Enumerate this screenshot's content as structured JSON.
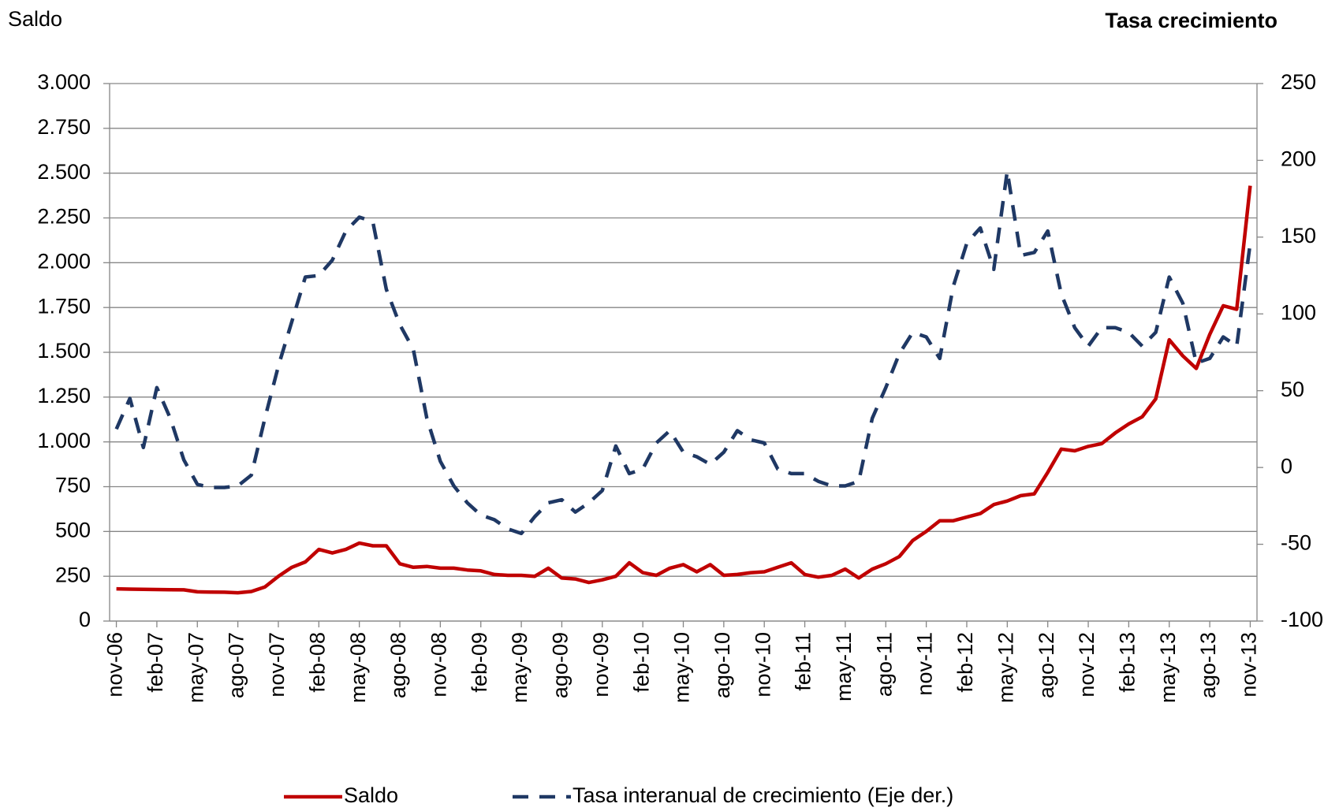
{
  "chart_data": {
    "type": "line",
    "y_label": "Saldo",
    "y2_label": "Tasa crecimiento",
    "categories": [
      "nov-06",
      null,
      null,
      "feb-07",
      null,
      null,
      "may-07",
      null,
      null,
      "ago-07",
      null,
      null,
      "nov-07",
      null,
      null,
      "feb-08",
      null,
      null,
      "may-08",
      null,
      null,
      "ago-08",
      null,
      null,
      "nov-08",
      null,
      null,
      "feb-09",
      null,
      null,
      "may-09",
      null,
      null,
      "ago-09",
      null,
      null,
      "nov-09",
      null,
      null,
      "feb-10",
      null,
      null,
      "may-10",
      null,
      null,
      "ago-10",
      null,
      null,
      "nov-10",
      null,
      null,
      "feb-11",
      null,
      null,
      "may-11",
      null,
      null,
      "ago-11",
      null,
      null,
      "nov-11",
      null,
      null,
      "feb-12",
      null,
      null,
      "may-12",
      null,
      null,
      "ago-12",
      null,
      null,
      "nov-12",
      null,
      null,
      "feb-13",
      null,
      null,
      "may-13",
      null,
      null,
      "ago-13",
      null,
      null,
      "nov-13"
    ],
    "series": [
      {
        "name": "Saldo",
        "color": "#c00000",
        "dash": false,
        "axis": "y",
        "values": [
          180,
          178,
          177,
          176,
          175,
          174,
          163,
          162,
          161,
          158,
          165,
          190,
          250,
          300,
          330,
          400,
          380,
          400,
          435,
          420,
          420,
          320,
          300,
          305,
          295,
          295,
          285,
          280,
          260,
          255,
          255,
          250,
          295,
          240,
          235,
          215,
          230,
          250,
          325,
          270,
          255,
          295,
          315,
          275,
          315,
          255,
          260,
          270,
          275,
          300,
          325,
          260,
          245,
          255,
          290,
          240,
          290,
          320,
          360,
          450,
          500,
          560,
          560,
          580,
          600,
          650,
          670,
          700,
          710,
          830,
          960,
          950,
          975,
          990,
          1050,
          1100,
          1140,
          1240,
          1570,
          1480,
          1410,
          1600,
          1760,
          1740,
          2430
        ]
      },
      {
        "name": "Tasa interanual de crecimiento (Eje der.)",
        "color": "#1f3864",
        "dash": true,
        "axis": "y2",
        "values": [
          25,
          45,
          13,
          52,
          32,
          5,
          -11,
          -13,
          -13,
          -12,
          -5,
          32,
          66,
          95,
          124,
          125,
          135,
          154,
          163,
          160,
          116,
          93,
          77,
          32,
          4,
          -12,
          -23,
          -31,
          -34,
          -40,
          -43,
          -32,
          -23,
          -21,
          -29,
          -23,
          -15,
          14,
          -4,
          -1,
          16,
          24,
          10,
          7,
          2,
          10,
          24,
          18,
          16,
          -1,
          -4,
          -4,
          -9,
          -12,
          -12,
          -9,
          32,
          52,
          74,
          88,
          85,
          71,
          118,
          146,
          156,
          129,
          193,
          138,
          140,
          154,
          113,
          91,
          79,
          91,
          91,
          88,
          79,
          88,
          124,
          107,
          68,
          71,
          85,
          79,
          146
        ]
      }
    ],
    "ylim": [
      0,
      3000
    ],
    "yticks": [
      0,
      {
        "value": 250,
        "label": "250"
      },
      {
        "value": 500,
        "label": "500"
      },
      {
        "value": 750,
        "label": "750"
      },
      {
        "value": 1000,
        "label": "1.000"
      },
      {
        "value": 1250,
        "label": "1.250"
      },
      {
        "value": 1500,
        "label": "1.500"
      },
      {
        "value": 1750,
        "label": "1.750"
      },
      {
        "value": 2000,
        "label": "2.000"
      },
      {
        "value": 2250,
        "label": "2.250"
      },
      {
        "value": 2500,
        "label": "2.500"
      },
      {
        "value": 2750,
        "label": "2.750"
      },
      {
        "value": 3000,
        "label": "3.000"
      }
    ],
    "y2lim": [
      -100,
      250
    ],
    "y2ticks": [
      -100,
      -50,
      0,
      50,
      100,
      150,
      200,
      250
    ],
    "grid": true,
    "legend": "bottom",
    "y_color": "#c00000"
  }
}
